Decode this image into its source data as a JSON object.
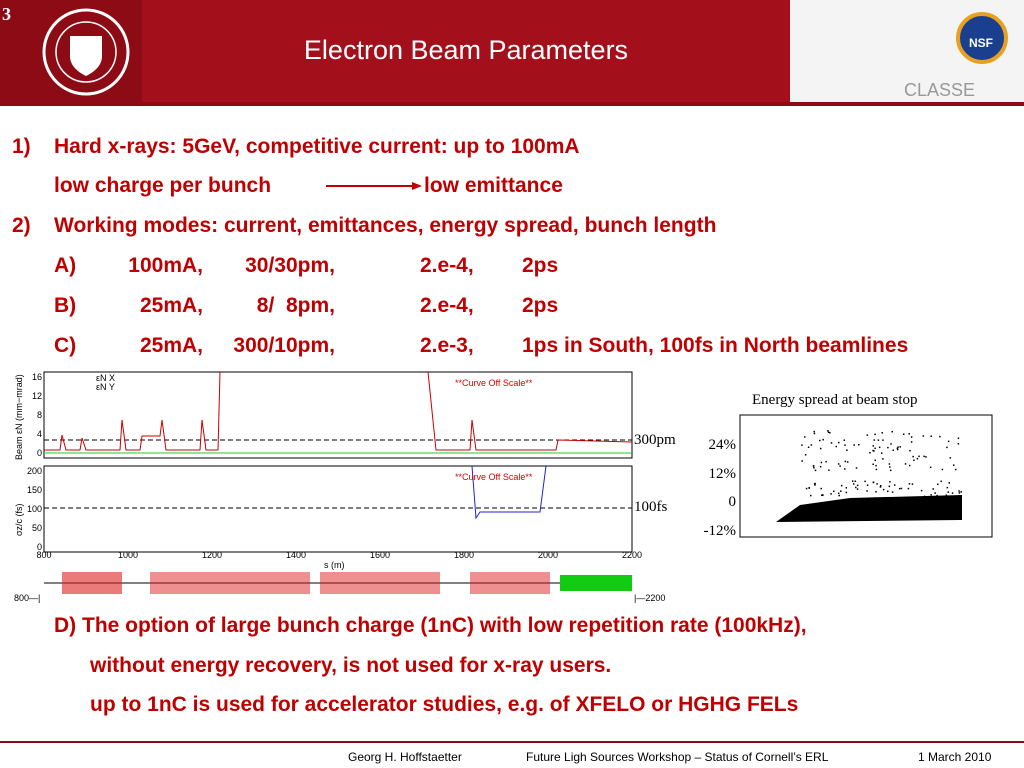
{
  "slide_number": "3",
  "title": "Electron Beam Parameters",
  "logo": {
    "nsf": "NSF",
    "classe": "CLASSE"
  },
  "items": [
    {
      "num": "1)",
      "text": "Hard x-rays: 5GeV, competitive current: up to 100mA"
    },
    {
      "left": "low charge per bunch",
      "right": "low emittance"
    },
    {
      "num": "2)",
      "text": "Working modes: current, emittances, energy spread, bunch length"
    }
  ],
  "modes": [
    [
      "A)",
      "100mA,",
      "30/30pm,",
      "2.e-4,",
      "2ps"
    ],
    [
      "B)",
      "25mA,",
      "8/  8pm,",
      "2.e-4,",
      "2ps"
    ],
    [
      "C)",
      "25mA,",
      "300/10pm,",
      "2.e-3,",
      "1ps in South, 100fs in North beamlines"
    ]
  ],
  "plot": {
    "top_yticks": [
      "16",
      "12",
      "8",
      "4",
      "0"
    ],
    "top_ylabel": "Beam εN (mm−mrad)",
    "top_legend": [
      "εN X",
      "εN Y"
    ],
    "bottom_yticks": [
      "200",
      "150",
      "100",
      "50",
      "0"
    ],
    "bottom_ylabel": "σz/c (fs)",
    "xticks": [
      "800",
      "1000",
      "1200",
      "1400",
      "1600",
      "1800",
      "2000",
      "2200"
    ],
    "xlabel": "s (m)",
    "off_scale": [
      "**Curve Off Scale**",
      "**Curve Off Scale**"
    ],
    "lattice_left": "800—|",
    "lattice_right": "|—2200",
    "ref_top": "300pm",
    "ref_bottom": "100fs"
  },
  "inset": {
    "title": "Energy spread at beam stop",
    "yticks": [
      "24%",
      "12%",
      "0",
      "-12%"
    ]
  },
  "notes": [
    "D) The option of large bunch charge (1nC) with low repetition rate (100kHz),",
    "without energy recovery, is not used for x-ray users.",
    "up to 1nC is used for accelerator studies, e.g. of XFELO or HGHG FELs"
  ],
  "footer": {
    "author": "Georg H. Hoffstaetter",
    "event": "Future Ligh Sources Workshop – Status of Cornell’s ERL",
    "date": "1 March 2010"
  }
}
